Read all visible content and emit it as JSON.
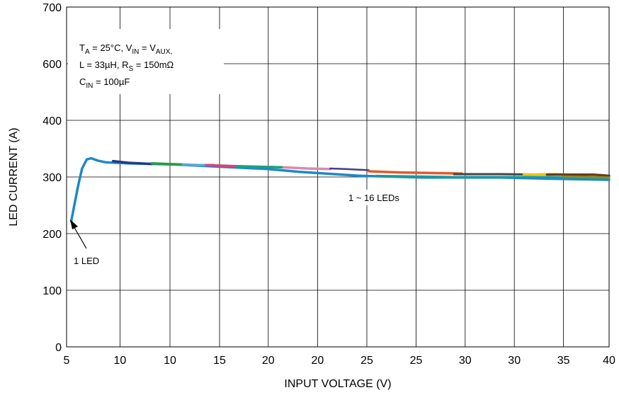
{
  "chart_data": {
    "type": "line",
    "xlabel": "INPUT VOLTAGE (V)",
    "ylabel": "LED CURRENT (A)",
    "x_tick_labels": [
      "5",
      "10",
      "10",
      "15",
      "20",
      "20",
      "25",
      "25",
      "30",
      "30",
      "35",
      "40"
    ],
    "y_tick_labels": [
      "0",
      "100",
      "200",
      "300",
      "400",
      "600",
      "700"
    ],
    "grid": true,
    "conditions": {
      "line1": "Tₐ = 25°C, Vᴵₙ = Vₐᵁˣ,",
      "line1_parts": [
        [
          "T",
          ""
        ],
        [
          "A",
          "sub"
        ],
        [
          " = 25°C, V",
          ""
        ],
        [
          "IN",
          "sub"
        ],
        [
          " = V",
          ""
        ],
        [
          "AUX,",
          "sub"
        ]
      ],
      "line2_parts": [
        [
          "L = 33µH, R",
          ""
        ],
        [
          "S",
          "sub"
        ],
        [
          " = 150mΩ",
          ""
        ]
      ],
      "line3_parts": [
        [
          "C",
          ""
        ],
        [
          "IN",
          "sub"
        ],
        [
          " = 100µF",
          ""
        ]
      ]
    },
    "annotations": [
      {
        "text": "1 LED"
      },
      {
        "text": "1 ~ 16 LEDs"
      }
    ],
    "series": [
      {
        "color": "#1e88c8",
        "width": 3.5,
        "points": [
          [
            5.3,
            222
          ],
          [
            5.5,
            250
          ],
          [
            5.75,
            285
          ],
          [
            6.0,
            315
          ],
          [
            6.3,
            331
          ],
          [
            6.6,
            333
          ],
          [
            7.0,
            329
          ],
          [
            7.5,
            326
          ],
          [
            9,
            324
          ],
          [
            12,
            322
          ],
          [
            15,
            318
          ],
          [
            18,
            314
          ],
          [
            20,
            309
          ],
          [
            24,
            302
          ],
          [
            28,
            299
          ],
          [
            33,
            299
          ],
          [
            36,
            297
          ],
          [
            40,
            295
          ]
        ]
      },
      {
        "color": "#1f3b8a",
        "width": 3.5,
        "points": [
          [
            8.0,
            328
          ],
          [
            9.0,
            325
          ],
          [
            10.5,
            323
          ]
        ]
      },
      {
        "color": "#2a9a45",
        "width": 3.5,
        "points": [
          [
            10.5,
            324
          ],
          [
            11.5,
            323
          ],
          [
            12.5,
            322
          ]
        ]
      },
      {
        "color": "#5aa6d6",
        "width": 3.5,
        "points": [
          [
            12.5,
            322
          ],
          [
            13.5,
            321
          ],
          [
            14.5,
            321
          ]
        ]
      },
      {
        "color": "#d8447a",
        "width": 3.5,
        "points": [
          [
            14.0,
            321
          ],
          [
            15.0,
            320
          ],
          [
            16.0,
            319
          ]
        ]
      },
      {
        "color": "#1aa27a",
        "width": 3.5,
        "points": [
          [
            16.0,
            319
          ],
          [
            17.5,
            318
          ],
          [
            19.0,
            317
          ]
        ]
      },
      {
        "color": "#d58ab3",
        "width": 3.5,
        "points": [
          [
            19.0,
            317
          ],
          [
            20.5,
            315
          ],
          [
            22.0,
            314
          ]
        ]
      },
      {
        "color": "#4a3a8a",
        "width": 2.5,
        "points": [
          [
            22.0,
            315
          ],
          [
            23.0,
            314
          ],
          [
            24.5,
            312
          ]
        ]
      },
      {
        "color": "#e05a2a",
        "width": 3.5,
        "points": [
          [
            24.5,
            310
          ],
          [
            26.5,
            308
          ],
          [
            28.5,
            307
          ],
          [
            30.5,
            306
          ]
        ]
      },
      {
        "color": "#444444",
        "width": 3.0,
        "points": [
          [
            30.0,
            305
          ],
          [
            33.0,
            305
          ],
          [
            36.0,
            304
          ]
        ]
      },
      {
        "color": "#f2c100",
        "width": 3.5,
        "points": [
          [
            34.5,
            304
          ],
          [
            36.5,
            305
          ],
          [
            38.5,
            303
          ]
        ]
      },
      {
        "color": "#1d9a9a",
        "width": 3.0,
        "points": [
          [
            25.0,
            302
          ],
          [
            30.0,
            300
          ],
          [
            35.0,
            300
          ],
          [
            40.0,
            298
          ]
        ]
      },
      {
        "color": "#6b3b1a",
        "width": 3.5,
        "points": [
          [
            36.0,
            304
          ],
          [
            37.5,
            304
          ],
          [
            39.0,
            304
          ],
          [
            40.0,
            302
          ]
        ]
      },
      {
        "color": "#8a8a30",
        "width": 3.0,
        "points": [
          [
            37.0,
            301
          ],
          [
            38.5,
            300
          ],
          [
            40.0,
            299
          ]
        ]
      }
    ]
  }
}
